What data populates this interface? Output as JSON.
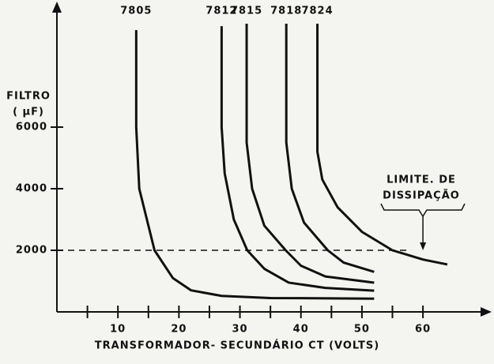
{
  "chart_data": {
    "type": "line",
    "x_label": "TRANSFORMADOR- SECUNDÁRIO CT (VOLTS)",
    "y_label": [
      "FILTRO",
      "( μF)"
    ],
    "xlim": [
      0,
      71
    ],
    "ylim": [
      0,
      10000
    ],
    "xticks": [
      10,
      20,
      30,
      40,
      50,
      60
    ],
    "x_minor_ticks": [
      5,
      15,
      25,
      35,
      45,
      55
    ],
    "yticks": [
      2000,
      4000,
      6000
    ],
    "color": "#111111",
    "series": [
      {
        "name": "7805",
        "color": "#111111",
        "x": [
          13,
          13,
          13.5,
          16,
          19,
          22,
          27,
          35,
          52
        ],
        "values": [
          9150,
          6000,
          4000,
          2000,
          1100,
          700,
          520,
          450,
          430
        ]
      },
      {
        "name": "7812",
        "color": "#111111",
        "x": [
          27,
          27,
          27.5,
          29,
          31.2,
          34,
          38,
          44,
          52
        ],
        "values": [
          9280,
          6000,
          4500,
          3000,
          2000,
          1400,
          950,
          780,
          690
        ]
      },
      {
        "name": "7815",
        "color": "#111111",
        "x": [
          31.1,
          31.1,
          32,
          34,
          37.5,
          40,
          44,
          52
        ],
        "values": [
          9360,
          5500,
          4000,
          2800,
          2000,
          1500,
          1150,
          950
        ]
      },
      {
        "name": "7818",
        "color": "#111111",
        "x": [
          37.6,
          37.6,
          38.5,
          40.5,
          44.4,
          47,
          52
        ],
        "values": [
          9360,
          5500,
          4000,
          2900,
          2000,
          1600,
          1300
        ]
      },
      {
        "name": "7824",
        "color": "#111111",
        "x": [
          42.7,
          42.7,
          43.5,
          46,
          50,
          55,
          60,
          64
        ],
        "values": [
          9360,
          5200,
          4300,
          3400,
          2600,
          2000,
          1700,
          1540
        ]
      }
    ],
    "limit_line": 2000,
    "limit_x": 60,
    "annotation": [
      "LIMITE. DE",
      "DISSIPAÇÃO"
    ]
  }
}
